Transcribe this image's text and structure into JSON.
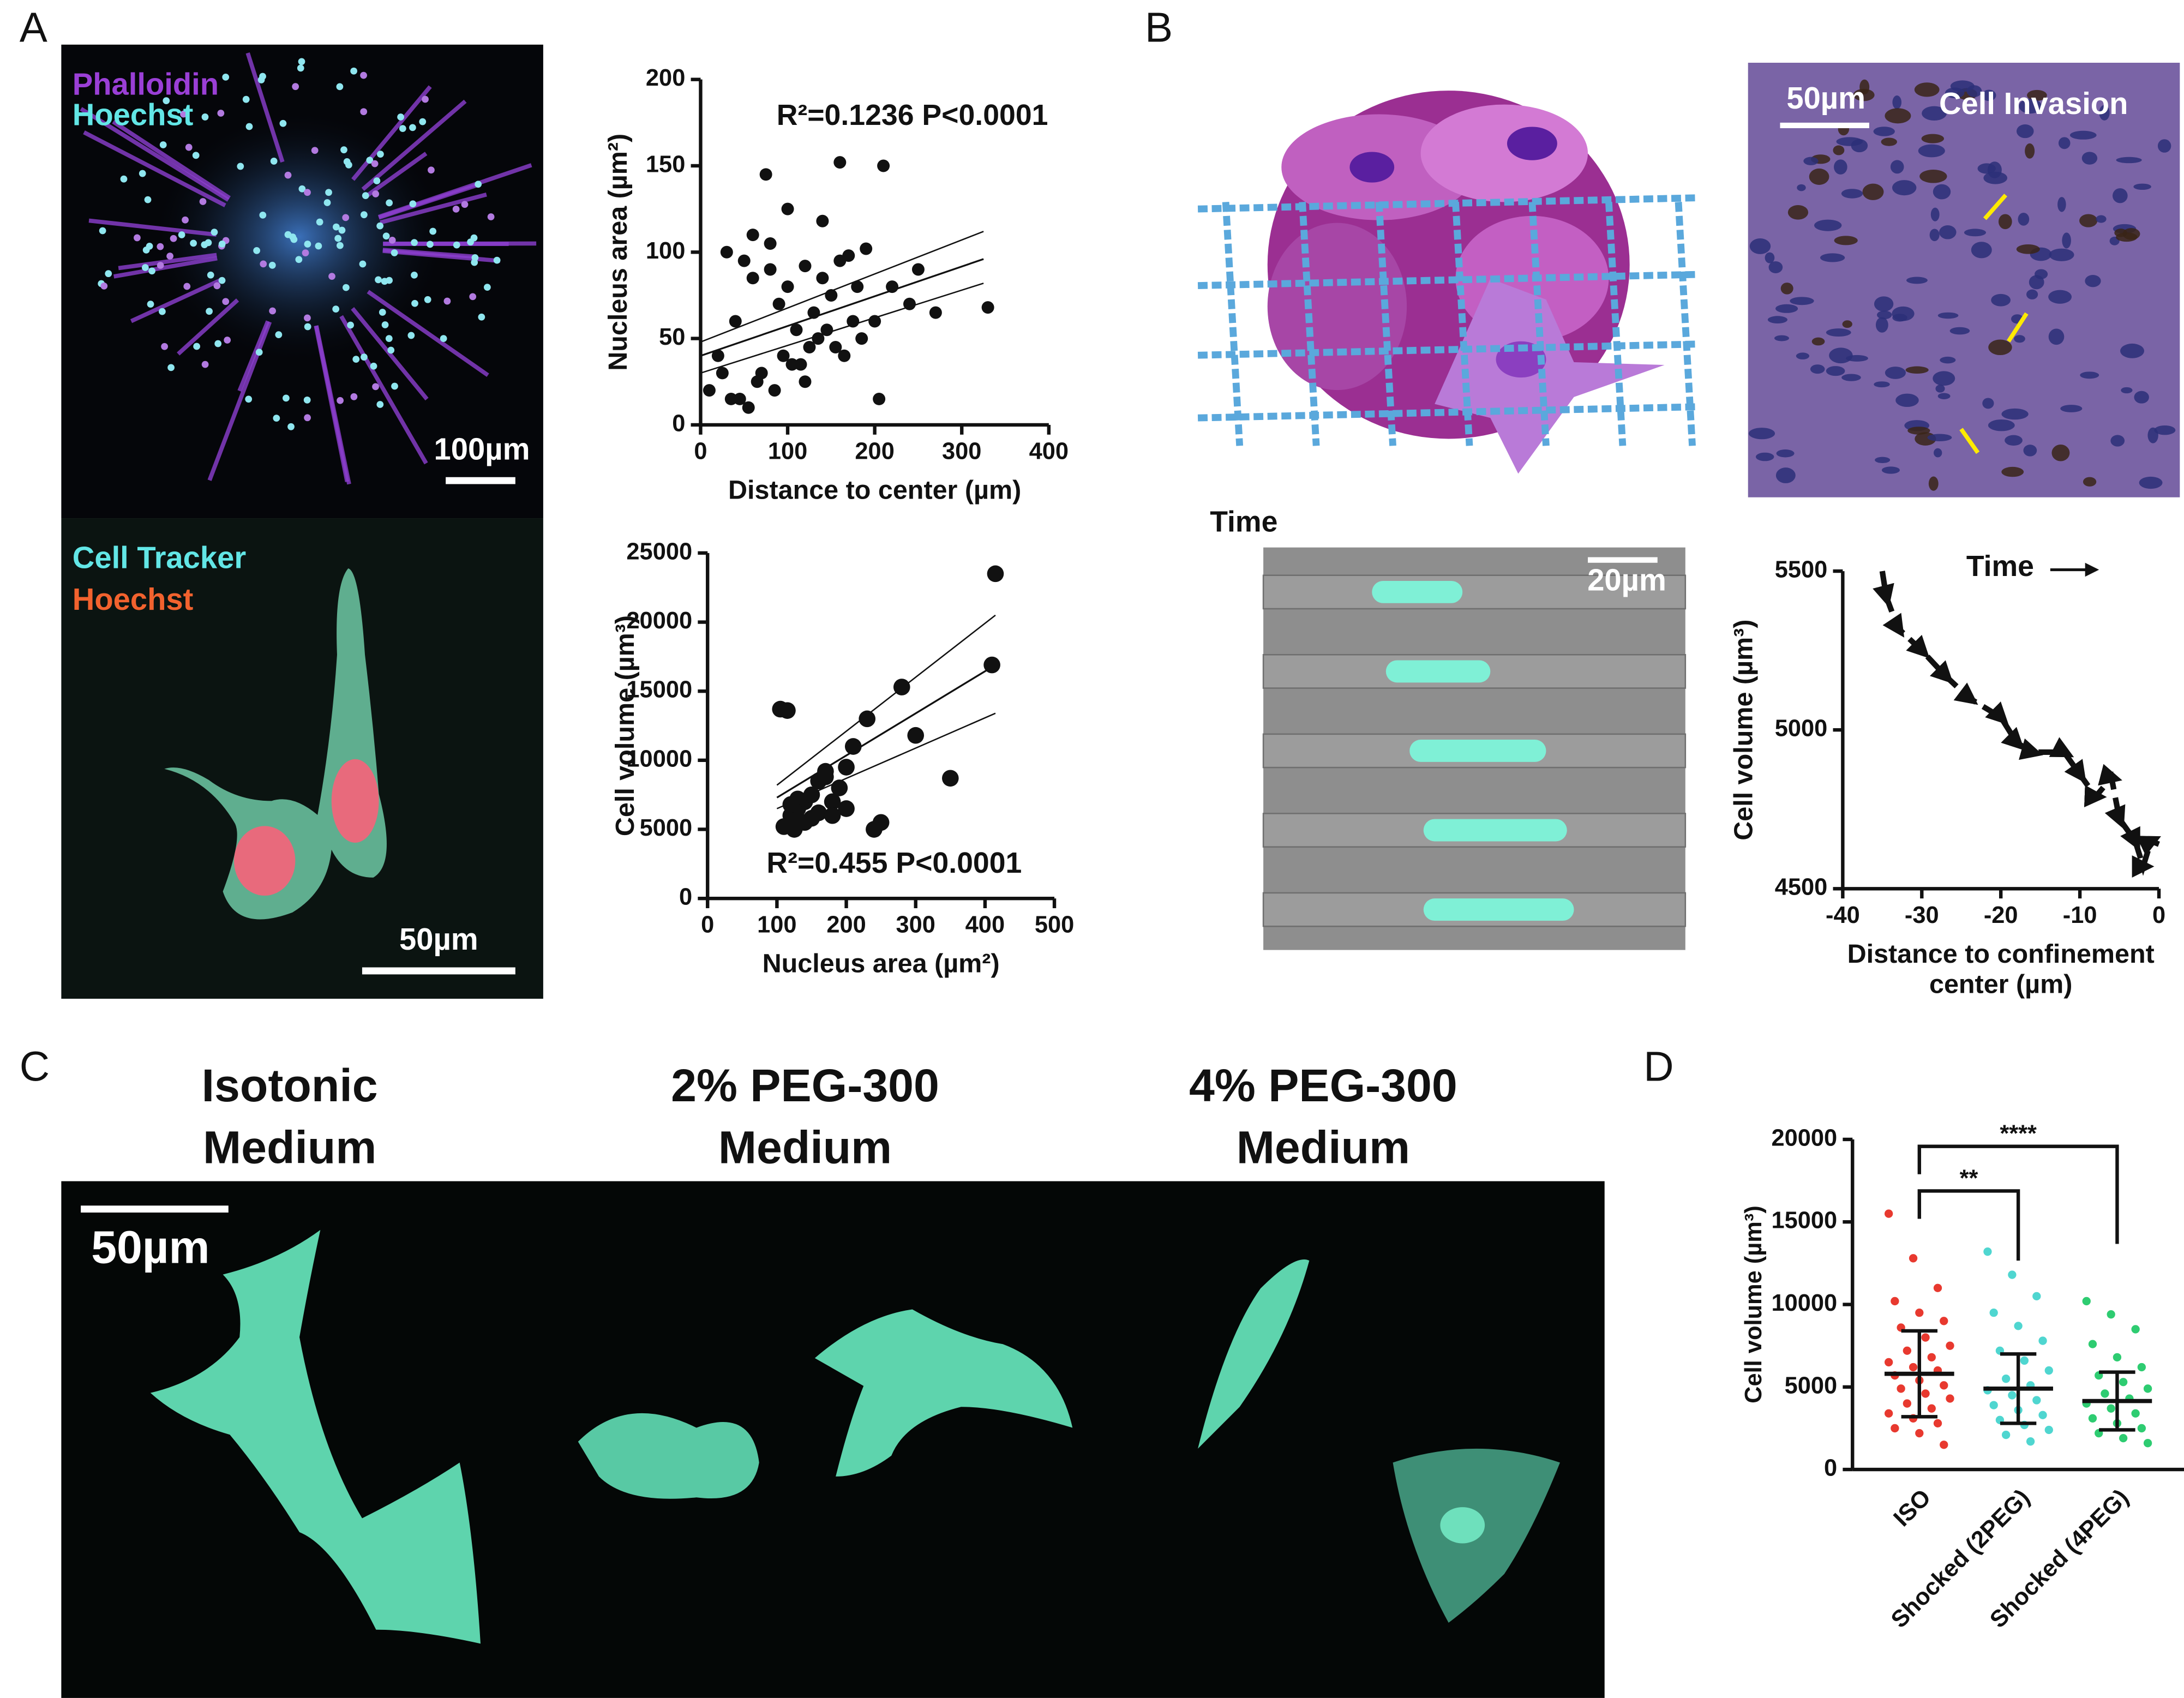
{
  "figure": {
    "panel_labels": [
      "A",
      "B",
      "C",
      "D"
    ],
    "a_top_image": {
      "labels": [
        "Phalloidin",
        "Hoechst"
      ],
      "scale_bar": "100µm"
    },
    "a_bottom_image": {
      "labels": [
        "Cell Tracker",
        "Hoechst"
      ],
      "scale_bar": "50µm"
    },
    "b_tissue_image": {
      "scale_bar": "50µm",
      "label": "Cell Invasion"
    },
    "b_channel": {
      "axis_label": "Time",
      "scale_bar": "20µm"
    },
    "c_conditions": [
      "Isotonic Medium",
      "2% PEG-300 Medium",
      "4% PEG-300 Medium"
    ],
    "c_scale_bar": "50µm"
  },
  "chart_data": [
    {
      "type": "scatter",
      "xlabel": "Distance to center (µm)",
      "ylabel": "Nucleus area (µm²)",
      "annotation": "R²=0.1236 P<0.0001",
      "color": "#111111",
      "x": [
        75,
        160,
        210,
        100,
        140,
        60,
        30,
        50,
        80,
        120,
        170,
        190,
        220,
        250,
        330,
        20,
        40,
        90,
        110,
        130,
        150,
        180,
        200,
        240,
        70,
        95,
        115,
        135,
        155,
        175,
        10,
        25,
        45,
        65,
        85,
        105,
        125,
        145,
        165,
        185,
        205,
        60,
        80,
        100,
        140,
        160,
        55,
        35,
        120,
        270
      ],
      "y": [
        145,
        152,
        150,
        125,
        118,
        110,
        100,
        95,
        105,
        92,
        98,
        102,
        80,
        90,
        68,
        40,
        60,
        70,
        55,
        65,
        75,
        80,
        60,
        70,
        30,
        40,
        35,
        50,
        45,
        60,
        20,
        30,
        15,
        25,
        20,
        35,
        45,
        55,
        40,
        50,
        15,
        85,
        90,
        80,
        85,
        95,
        10,
        15,
        25,
        65
      ],
      "fit_lines": [
        {
          "x": [
            0,
            325
          ],
          "y": [
            40,
            96
          ]
        },
        {
          "x": [
            0,
            325
          ],
          "y": [
            30,
            82
          ]
        },
        {
          "x": [
            0,
            325
          ],
          "y": [
            48,
            112
          ]
        }
      ],
      "xlim": [
        0,
        400
      ],
      "ylim": [
        0,
        200
      ],
      "xticks": [
        0,
        100,
        200,
        300,
        400
      ],
      "yticks": [
        0,
        50,
        100,
        150,
        200
      ]
    },
    {
      "type": "scatter",
      "xlabel": "Nucleus area (µm²)",
      "ylabel": "Cell volume (µm³)",
      "annotation": "R²=0.455 P<0.0001",
      "color": "#111111",
      "x": [
        105,
        115,
        120,
        110,
        130,
        140,
        150,
        160,
        170,
        180,
        190,
        200,
        210,
        150,
        160,
        140,
        130,
        120,
        230,
        250,
        280,
        300,
        350,
        415,
        410,
        240,
        200,
        170,
        180,
        125
      ],
      "y": [
        13700,
        13600,
        6000,
        5200,
        6500,
        7000,
        7500,
        8500,
        9200,
        7000,
        8000,
        6500,
        11000,
        5800,
        6200,
        5500,
        7200,
        6800,
        13000,
        5500,
        15300,
        11800,
        8700,
        23500,
        16900,
        5000,
        9500,
        8800,
        6000,
        5000
      ],
      "fit_lines": [
        {
          "x": [
            100,
            415
          ],
          "y": [
            7300,
            16900
          ]
        },
        {
          "x": [
            100,
            415
          ],
          "y": [
            6500,
            13400
          ]
        },
        {
          "x": [
            100,
            415
          ],
          "y": [
            8200,
            20500
          ]
        }
      ],
      "xlim": [
        0,
        500
      ],
      "ylim": [
        0,
        25000
      ],
      "xticks": [
        0,
        100,
        200,
        300,
        400,
        500
      ],
      "yticks": [
        0,
        5000,
        10000,
        15000,
        20000,
        25000
      ]
    },
    {
      "type": "line",
      "xlabel": "Distance to confinement center (µm)",
      "ylabel": "Cell volume (µm³)",
      "annotation": "Time",
      "color": "#111111",
      "dashed": true,
      "x": [
        -35,
        -34.5,
        -33,
        -30,
        -27,
        -24,
        -20,
        -18,
        -16,
        -12,
        -10,
        -8,
        -6,
        -5,
        -3,
        -2,
        -1,
        0
      ],
      "y": [
        5500,
        5420,
        5320,
        5250,
        5170,
        5100,
        5040,
        4960,
        4930,
        4930,
        4860,
        4790,
        4850,
        4720,
        4650,
        4570,
        4650,
        4640
      ],
      "xlim": [
        -40,
        0
      ],
      "ylim": [
        4500,
        5500
      ],
      "xticks": [
        -40,
        -30,
        -20,
        -10,
        0
      ],
      "yticks": [
        4500,
        5000,
        5500
      ]
    },
    {
      "type": "strip",
      "ylabel": "Cell volume (µm³)",
      "significance": [
        "****",
        "**"
      ],
      "groups": [
        {
          "name": "ISO",
          "color": "#e8392f",
          "mean": 5800,
          "sd_low": 3200,
          "sd_high": 8400,
          "values": [
            15500,
            12800,
            11000,
            10200,
            9500,
            9000,
            8600,
            8000,
            7500,
            7200,
            6800,
            6500,
            6200,
            6000,
            5700,
            5400,
            5100,
            4900,
            4600,
            4300,
            4000,
            3700,
            3400,
            3100,
            2800,
            2500,
            2200,
            1500
          ]
        },
        {
          "name": "Shocked (2PEG)",
          "color": "#4fd6d0",
          "mean": 4900,
          "sd_low": 2800,
          "sd_high": 7000,
          "values": [
            13200,
            11800,
            10500,
            9500,
            8700,
            7800,
            7200,
            6600,
            6000,
            5500,
            5100,
            4800,
            4500,
            4200,
            3900,
            3600,
            3300,
            3000,
            2700,
            2400,
            2100,
            1700
          ]
        },
        {
          "name": "Shocked (4PEG)",
          "color": "#2ecc71",
          "mean": 4150,
          "sd_low": 2400,
          "sd_high": 5900,
          "values": [
            10200,
            9400,
            8500,
            7600,
            6800,
            6200,
            5700,
            5300,
            4900,
            4600,
            4300,
            4000,
            3700,
            3400,
            3100,
            2800,
            2500,
            2200,
            1900,
            1600
          ]
        }
      ],
      "ylim": [
        0,
        20000
      ],
      "yticks": [
        0,
        5000,
        10000,
        15000,
        20000
      ]
    }
  ]
}
